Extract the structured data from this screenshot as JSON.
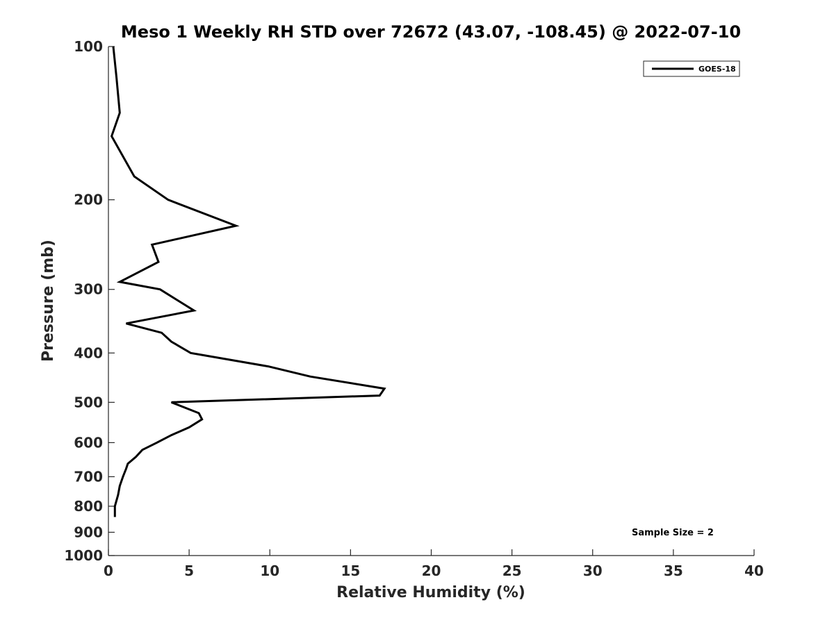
{
  "chart_data": {
    "type": "line",
    "title": "Meso 1 Weekly RH STD over 72672 (43.07, -108.45) @ 2022-07-10",
    "xlabel": "Relative Humidity (%)",
    "ylabel": "Pressure (mb)",
    "xlim": [
      0,
      40
    ],
    "ylim": [
      100,
      1000
    ],
    "y_scale": "log",
    "y_inverted": true,
    "x_ticks": [
      0,
      5,
      10,
      15,
      20,
      25,
      30,
      35,
      40
    ],
    "y_ticks": [
      100,
      200,
      300,
      400,
      500,
      600,
      700,
      800,
      900,
      1000
    ],
    "grid": false,
    "legend_position": "top-right",
    "series": [
      {
        "name": "GOES-18",
        "color": "#000000",
        "x": [
          0.3,
          0.5,
          0.7,
          0.2,
          1.6,
          3.7,
          7.9,
          2.7,
          3.1,
          0.7,
          3.2,
          5.3,
          1.1,
          3.3,
          3.9,
          5.1,
          9.9,
          12.5,
          17.1,
          16.8,
          3.9,
          5.6,
          5.8,
          5.0,
          3.9,
          3.0,
          2.1,
          1.7,
          1.2,
          1.1,
          0.9,
          0.7,
          0.6,
          0.4,
          0.4
        ],
        "y": [
          100,
          115,
          135,
          150,
          180,
          200,
          225,
          245,
          265,
          290,
          300,
          330,
          350,
          365,
          380,
          400,
          425,
          445,
          470,
          485,
          500,
          525,
          540,
          560,
          580,
          600,
          620,
          640,
          660,
          675,
          700,
          730,
          760,
          800,
          840
        ]
      }
    ],
    "annotations": [
      "Sample Size = 2"
    ]
  }
}
